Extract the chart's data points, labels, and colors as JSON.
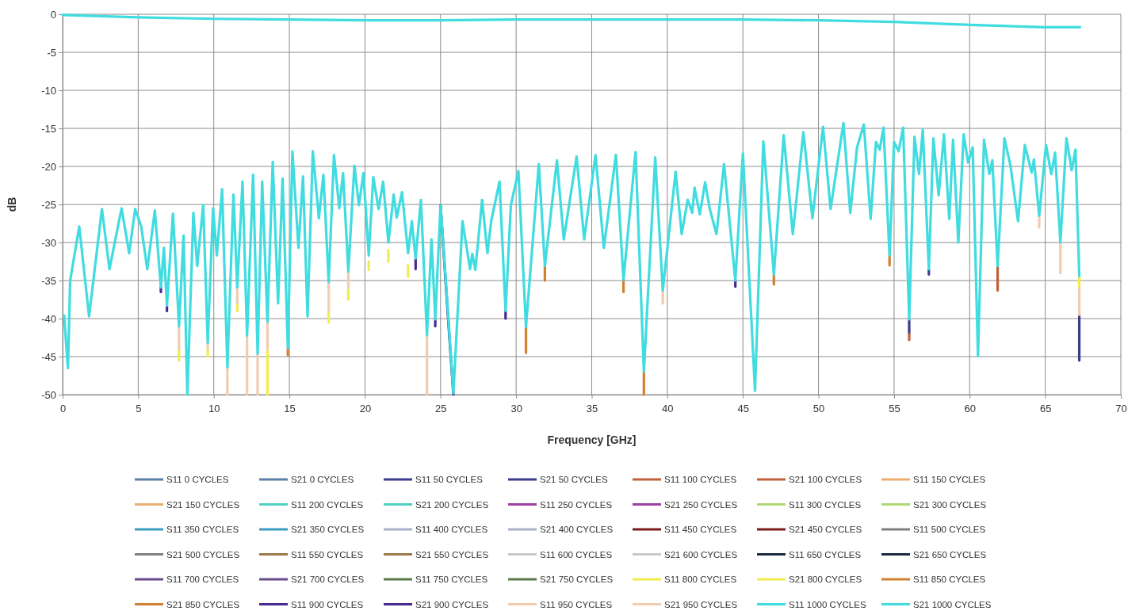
{
  "chart_data": {
    "type": "line",
    "xlabel": "Frequency [GHz]",
    "ylabel": "dB",
    "xlim": [
      0,
      70
    ],
    "xticks": [
      0,
      5,
      10,
      15,
      20,
      25,
      30,
      35,
      40,
      45,
      50,
      55,
      60,
      65,
      70
    ],
    "ylim": [
      -50,
      0
    ],
    "yticks": [
      0,
      -5,
      -10,
      -15,
      -20,
      -25,
      -30,
      -35,
      -40,
      -45,
      -50
    ],
    "grid": true,
    "legend": "bottom",
    "series": [
      {
        "name": "S11 0 CYCLES",
        "color": "#5b7fa6",
        "values": [
          null
        ]
      },
      {
        "name": "S21 0 CYCLES",
        "color": "#5b7fa6",
        "values": [
          null
        ]
      },
      {
        "name": "S11 50 CYCLES",
        "color": "#3b3c8c",
        "x": [
          25.0,
          25.5,
          25.85,
          null,
          56.0,
          56.0,
          null,
          57.3,
          57.3,
          null,
          67.25,
          67.25
        ],
        "values": [
          -25.1,
          -40,
          -50,
          null,
          -40.1,
          -42,
          null,
          -33.5,
          -34.2,
          null,
          -39.5,
          -45.5
        ]
      },
      {
        "name": "S21 50 CYCLES",
        "color": "#3b3c8c",
        "values": [
          null
        ]
      },
      {
        "name": "S11 100 CYCLES",
        "color": "#c0603a",
        "x": [
          56.0,
          56.0,
          null,
          61.85,
          61.85
        ],
        "values": [
          -42,
          -42.8,
          null,
          -33.1,
          -36.3
        ]
      },
      {
        "name": "S21 100 CYCLES",
        "color": "#c0603a",
        "values": [
          null
        ]
      },
      {
        "name": "S11 150 CYCLES",
        "color": "#e8b070",
        "values": [
          null
        ]
      },
      {
        "name": "S21 150 CYCLES",
        "color": "#e8b070",
        "values": [
          null
        ]
      },
      {
        "name": "S11 200 CYCLES",
        "color": "#50d0c0",
        "values": [
          null
        ]
      },
      {
        "name": "S21 200 CYCLES",
        "color": "#50d0c0",
        "values": [
          null
        ]
      },
      {
        "name": "S11 250 CYCLES",
        "color": "#a040a0",
        "values": [
          null
        ]
      },
      {
        "name": "S21 250 CYCLES",
        "color": "#a040a0",
        "values": [
          null
        ]
      },
      {
        "name": "S11 300 CYCLES",
        "color": "#b0d870",
        "values": [
          null
        ]
      },
      {
        "name": "S21 300 CYCLES",
        "color": "#b0d870",
        "values": [
          null
        ]
      },
      {
        "name": "S11 350 CYCLES",
        "color": "#3a9cc0",
        "values": [
          null
        ]
      },
      {
        "name": "S21 350 CYCLES",
        "color": "#3a9cc0",
        "values": [
          null
        ]
      },
      {
        "name": "S11 400 CYCLES",
        "color": "#a8b0c8",
        "values": [
          null
        ]
      },
      {
        "name": "S21 400 CYCLES",
        "color": "#a8b0c8",
        "values": [
          null
        ]
      },
      {
        "name": "S11 450 CYCLES",
        "color": "#7a1a1a",
        "values": [
          null
        ]
      },
      {
        "name": "S21 450 CYCLES",
        "color": "#7a1a1a",
        "values": [
          null
        ]
      },
      {
        "name": "S11 500 CYCLES",
        "color": "#808080",
        "values": [
          null
        ]
      },
      {
        "name": "S21 500 CYCLES",
        "color": "#808080",
        "values": [
          null
        ]
      },
      {
        "name": "S11 550 CYCLES",
        "color": "#9a7a4a",
        "values": [
          null
        ]
      },
      {
        "name": "S21 550 CYCLES",
        "color": "#9a7a4a",
        "values": [
          null
        ]
      },
      {
        "name": "S11 600 CYCLES",
        "color": "#c8c8c8",
        "values": [
          null
        ]
      },
      {
        "name": "S21 600 CYCLES",
        "color": "#c8c8c8",
        "values": [
          null
        ]
      },
      {
        "name": "S11 650 CYCLES",
        "color": "#1a2a40",
        "values": [
          null
        ]
      },
      {
        "name": "S21 650 CYCLES",
        "color": "#1a2a40",
        "values": [
          null
        ]
      },
      {
        "name": "S11 700 CYCLES",
        "color": "#6a4a8a",
        "values": [
          null
        ]
      },
      {
        "name": "S21 700 CYCLES",
        "color": "#6a4a8a",
        "values": [
          null
        ]
      },
      {
        "name": "S11 750 CYCLES",
        "color": "#5a7a4a",
        "values": [
          null
        ]
      },
      {
        "name": "S21 750 CYCLES",
        "color": "#5a7a4a",
        "values": [
          null
        ]
      },
      {
        "name": "S11 800 CYCLES",
        "color": "#f0ec50",
        "x": [
          7.7,
          7.7,
          null,
          9.6,
          9.6,
          null,
          11.55,
          11.55,
          null,
          13.55,
          13.55,
          null,
          17.6,
          17.6,
          null,
          18.9,
          18.9,
          null,
          20.25,
          20.25,
          null,
          21.55,
          21.55,
          null,
          22.85,
          22.85,
          null,
          67.25,
          67.25
        ],
        "values": [
          -44,
          -45.5,
          null,
          -44,
          -45,
          null,
          -38,
          -39,
          null,
          -44,
          -50,
          null,
          -39,
          -40.5,
          null,
          -36,
          -37.5,
          null,
          -32.5,
          -33.6,
          null,
          -31,
          -32.5,
          null,
          -33,
          -34.5,
          null,
          -34.4,
          -36
        ]
      },
      {
        "name": "S21 800 CYCLES",
        "color": "#f0ec50",
        "values": [
          null
        ]
      },
      {
        "name": "S11 850 CYCLES",
        "color": "#d08030",
        "x": [
          14.9,
          14.9,
          null,
          30.65,
          30.65,
          null,
          31.9,
          31.9,
          null,
          37.1,
          37.1,
          null,
          38.45,
          38.45,
          null,
          47.05,
          47.05,
          null,
          54.7,
          54.7
        ],
        "values": [
          -43.9,
          -44.8,
          null,
          -41.1,
          -44.5,
          null,
          -33.1,
          -35,
          null,
          -34.9,
          -36.5,
          null,
          -47,
          -50,
          null,
          -34.2,
          -35.5,
          null,
          -31.7,
          -33
        ]
      },
      {
        "name": "S21 850 CYCLES",
        "color": "#d08030",
        "values": [
          null
        ]
      },
      {
        "name": "S11 900 CYCLES",
        "color": "#4a2a90",
        "x": [
          6.5,
          6.5,
          null,
          6.9,
          6.9,
          null,
          23.35,
          23.35,
          null,
          24.65,
          24.65,
          null,
          29.3,
          29.3,
          null,
          44.5,
          44.5
        ],
        "values": [
          -35.9,
          -36.5,
          null,
          -38.3,
          -39,
          null,
          -32.1,
          -33.5,
          null,
          -40.1,
          -41,
          null,
          -39,
          -40,
          null,
          -35,
          -35.8
        ]
      },
      {
        "name": "S21 900 CYCLES",
        "color": "#4a2a90",
        "values": [
          null
        ]
      },
      {
        "name": "S11 950 CYCLES",
        "color": "#f0ccb0",
        "x": [
          7.7,
          7.7,
          null,
          9.6,
          9.6,
          null,
          10.9,
          10.9,
          null,
          11.55,
          11.55,
          null,
          12.2,
          12.2,
          null,
          12.9,
          12.9,
          null,
          13.55,
          13.55,
          null,
          17.6,
          17.6,
          null,
          18.9,
          18.9,
          null,
          24.1,
          24.1,
          null,
          39.7,
          39.7,
          null,
          64.6,
          64.6,
          null,
          66.0,
          66.0,
          null,
          67.25,
          67.25
        ],
        "values": [
          -41,
          -44,
          null,
          -43.2,
          -44,
          null,
          -46.4,
          -50,
          null,
          -35.9,
          -38,
          null,
          -42.2,
          -50,
          null,
          -44.6,
          -50,
          null,
          -40.4,
          -44,
          null,
          -35.2,
          -39,
          null,
          -33.8,
          -36,
          null,
          -42.2,
          -50,
          null,
          -36.3,
          -38,
          null,
          -26.5,
          -28,
          null,
          -30,
          -34,
          null,
          -36,
          -39.5
        ]
      },
      {
        "name": "S21 950 CYCLES",
        "color": "#f0ccb0",
        "values": [
          null
        ]
      },
      {
        "name": "S11 1000 CYCLES",
        "color": "#40dce0",
        "x": [
          0.1,
          0.35,
          0.5,
          1.1,
          1.75,
          2.6,
          3.1,
          3.9,
          4.4,
          4.8,
          5.2,
          5.6,
          6.1,
          6.5,
          6.7,
          6.9,
          7.3,
          7.7,
          8.0,
          8.25,
          8.65,
          8.9,
          9.3,
          9.6,
          9.95,
          10.2,
          10.55,
          10.9,
          11.3,
          11.55,
          11.9,
          12.2,
          12.6,
          12.9,
          13.2,
          13.55,
          13.9,
          14.25,
          14.55,
          14.9,
          15.2,
          15.6,
          15.9,
          16.2,
          16.55,
          16.95,
          17.25,
          17.6,
          17.95,
          18.3,
          18.55,
          18.9,
          19.3,
          19.6,
          19.9,
          20.25,
          20.55,
          20.9,
          21.2,
          21.55,
          21.9,
          22.1,
          22.45,
          22.85,
          23.1,
          23.35,
          23.7,
          24.1,
          24.4,
          24.65,
          25.0,
          25.5,
          25.85,
          26.45,
          26.95,
          27.1,
          27.3,
          27.75,
          28.1,
          28.35,
          28.9,
          29.3,
          29.65,
          30.15,
          30.65,
          31.5,
          31.9,
          32.7,
          33.15,
          34.0,
          34.5,
          35.25,
          35.8,
          36.6,
          37.1,
          37.9,
          38.45,
          39.2,
          39.7,
          40.55,
          40.95,
          41.35,
          41.65,
          41.8,
          42.15,
          42.5,
          42.8,
          43.25,
          43.75,
          44.5,
          45.0,
          45.8,
          46.35,
          47.05,
          47.7,
          48.3,
          49.0,
          49.6,
          50.3,
          50.8,
          51.65,
          52.1,
          52.55,
          53.0,
          53.45,
          53.8,
          54.05,
          54.3,
          54.7,
          55.0,
          55.3,
          55.6,
          56.0,
          56.35,
          56.65,
          56.9,
          57.3,
          57.6,
          57.95,
          58.3,
          58.65,
          58.9,
          59.25,
          59.6,
          59.9,
          60.2,
          60.55,
          60.95,
          61.3,
          61.5,
          61.85,
          62.3,
          62.7,
          63.2,
          63.65,
          64.1,
          64.25,
          64.6,
          65.05,
          65.4,
          65.65,
          66.0,
          66.4,
          66.75,
          67.0,
          67.25
        ],
        "values": [
          -39.6,
          -46.5,
          -35,
          -27.9,
          -39.7,
          -25.6,
          -33.5,
          -25.5,
          -31.4,
          -25.6,
          -27.9,
          -33.5,
          -25.8,
          -35.9,
          -30.7,
          -38.3,
          -26.2,
          -41,
          -29.1,
          -50,
          -26.1,
          -33.1,
          -25.1,
          -43.2,
          -25.5,
          -31.7,
          -23,
          -46.4,
          -23.7,
          -35.9,
          -22,
          -42.2,
          -21.1,
          -44.6,
          -22,
          -40.4,
          -19.4,
          -38,
          -21.6,
          -43.9,
          -18,
          -30.7,
          -21.3,
          -39.7,
          -18,
          -26.8,
          -21.1,
          -35.2,
          -18.5,
          -25.5,
          -20.9,
          -33.8,
          -19.9,
          -25.1,
          -20.9,
          -31.7,
          -21.4,
          -25.6,
          -22,
          -30,
          -23.7,
          -26.7,
          -23.4,
          -31.4,
          -27.2,
          -32.1,
          -24.4,
          -42.2,
          -29.6,
          -40.1,
          -25.1,
          -39.4,
          -49.8,
          -27.2,
          -33.5,
          -31.5,
          -33.6,
          -24.4,
          -31.4,
          -27.2,
          -22,
          -39,
          -25.1,
          -20.6,
          -41.1,
          -19.7,
          -33.1,
          -19.2,
          -29.6,
          -18.7,
          -29.6,
          -18.5,
          -30.7,
          -18.5,
          -34.9,
          -18.1,
          -47,
          -18.8,
          -36.3,
          -20.7,
          -28.9,
          -24.4,
          -26.1,
          -22.8,
          -26.3,
          -22.1,
          -25.5,
          -28.9,
          -19.7,
          -35,
          -18.3,
          -49.5,
          -16.7,
          -34.2,
          -15.9,
          -28.9,
          -15.5,
          -26.8,
          -14.8,
          -25.6,
          -14.3,
          -26.1,
          -17.5,
          -14.5,
          -26.9,
          -16.8,
          -17.8,
          -14.9,
          -31.7,
          -16.8,
          -18,
          -14.9,
          -40.1,
          -16.1,
          -21,
          -15.2,
          -33.5,
          -16.3,
          -23.8,
          -15.8,
          -26.9,
          -16.5,
          -30,
          -15.8,
          -19.5,
          -17.5,
          -44.9,
          -16.5,
          -21,
          -19.2,
          -33.1,
          -16.3,
          -19.9,
          -27.2,
          -17.2,
          -20.8,
          -19.1,
          -26.5,
          -17.2,
          -21,
          -18.2,
          -30,
          -16.3,
          -20.5,
          -17.8,
          -34.4
        ]
      },
      {
        "name": "S21 1000 CYCLES",
        "color": "#40dce0",
        "x": [
          0,
          5,
          10,
          15,
          20,
          25,
          30,
          35,
          40,
          45,
          50,
          55,
          60,
          65,
          67.3
        ],
        "values": [
          -0.1,
          -0.4,
          -0.6,
          -0.7,
          -0.8,
          -0.8,
          -0.7,
          -0.7,
          -0.7,
          -0.7,
          -0.8,
          -1,
          -1.4,
          -1.7,
          -1.7
        ]
      }
    ]
  }
}
